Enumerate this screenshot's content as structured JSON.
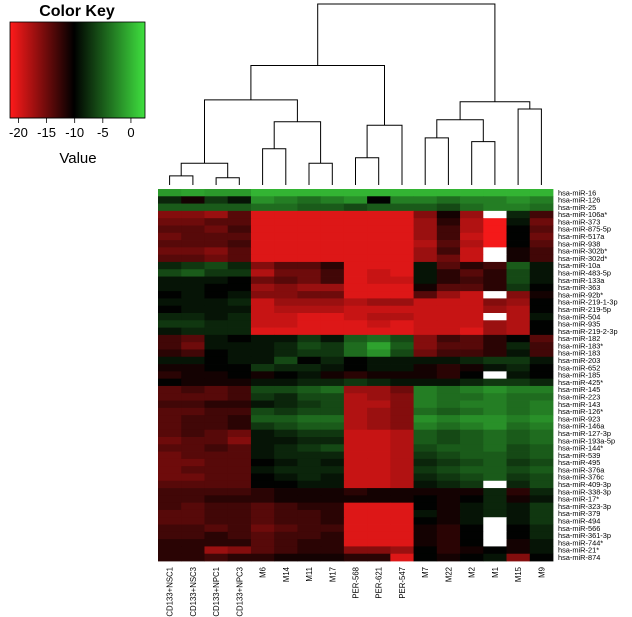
{
  "color_key": {
    "title": "Color Key",
    "axis_label": "Value",
    "ticks": [
      "-20",
      "-15",
      "-10",
      "-5",
      "0"
    ],
    "range": [
      -21.5,
      2.5
    ],
    "colors": {
      "low": "#ff1a1a",
      "mid": "#000000",
      "high": "#3fe03f"
    }
  },
  "chart_data": {
    "type": "heatmap",
    "columns": [
      "CD133+NSC1",
      "CD133+NSC3",
      "CD133+NPC1",
      "CD133+NPC3",
      "M6",
      "M14",
      "M11",
      "M17",
      "PER-568",
      "PER-621",
      "PER-547",
      "M7",
      "M22",
      "M2",
      "M1",
      "M15",
      "M9"
    ],
    "rows": [
      "hsa-miR-16",
      "hsa-miR-126",
      "hsa-miR-25",
      "hsa-miR-106a*",
      "hsa-miR-373",
      "hsa-miR-875-5p",
      "hsa-miR-517a",
      "hsa-miR-938",
      "hsa-miR-302b*",
      "hsa-miR-302d*",
      "hsa-miR-10a",
      "hsa-miR-483-5p",
      "hsa-miR-133a",
      "hsa-miR-363",
      "hsa-miR-92b*",
      "hsa-miR-219-1-3p",
      "hsa-miR-219-5p",
      "hsa-miR-504",
      "hsa-miR-935",
      "hsa-miR-219-2-3p",
      "hsa-miR-182",
      "hsa-miR-183*",
      "hsa-miR-183",
      "hsa-miR-203",
      "hsa-miR-652",
      "hsa-miR-185",
      "hsa-miR-425*",
      "hsa-miR-145",
      "hsa-miR-223",
      "hsa-miR-143",
      "hsa-miR-126*",
      "hsa-miR-923",
      "hsa-miR-146a",
      "hsa-miR-127-3p",
      "hsa-miR-193a-5p",
      "hsa-miR-144*",
      "hsa-miR-539",
      "hsa-miR-495",
      "hsa-miR-376a",
      "hsa-miR-376c",
      "hsa-miR-409-3p",
      "hsa-miR-338-3p",
      "hsa-miR-17*",
      "hsa-miR-323-3p",
      "hsa-miR-379",
      "hsa-miR-494",
      "hsa-miR-566",
      "hsa-miR-361-3p",
      "hsa-miR-744*",
      "hsa-miR-21*",
      "hsa-miR-874"
    ],
    "values": [
      [
        -1.5,
        -1,
        -1.5,
        -1.5,
        0,
        0,
        0,
        0,
        0,
        0,
        0,
        0,
        0,
        0,
        0,
        0,
        0
      ],
      [
        -8,
        -11,
        -7,
        -9,
        -2,
        -3,
        -4,
        -3,
        -2,
        -10,
        -3,
        -3,
        -4,
        -3,
        -3,
        -2,
        -3
      ],
      [
        -5,
        -5,
        -5,
        -5,
        -4,
        -4,
        -5,
        -5,
        -6,
        -5,
        -5,
        -5,
        -6,
        -4,
        -3,
        -3,
        -4
      ],
      [
        -16,
        -16,
        -17,
        -14,
        -20,
        -20,
        -20,
        -20,
        -20,
        -20,
        -20,
        -16,
        -11,
        -17,
        null,
        -8,
        -13
      ],
      [
        -15,
        -15,
        -14,
        -14,
        -20,
        -20,
        -20,
        -20,
        -20,
        -20,
        -20,
        -17,
        -12,
        -18,
        -21,
        -9,
        -15
      ],
      [
        -14,
        -14,
        -15,
        -13,
        -20,
        -20,
        -20,
        -20,
        -20,
        -20,
        -20,
        -17,
        -13,
        -18,
        -21,
        -10,
        -14
      ],
      [
        -15,
        -14,
        -14,
        -14,
        -20,
        -20,
        -20,
        -20,
        -20,
        -20,
        -20,
        -17,
        -13,
        -19,
        -21,
        -10,
        -15
      ],
      [
        -14,
        -14,
        -14,
        -13,
        -20,
        -20,
        -20,
        -20,
        -20,
        -20,
        -20,
        -18,
        -14,
        -18,
        -21,
        -10,
        -14
      ],
      [
        -15,
        -15,
        -16,
        -14,
        -20,
        -20,
        -20,
        -20,
        -20,
        -20,
        -20,
        -17,
        -13,
        -19,
        null,
        -11,
        -13
      ],
      [
        -14,
        -14,
        -15,
        -14,
        -20,
        -20,
        -20,
        -20,
        -20,
        -20,
        -20,
        -17,
        -15,
        -19,
        null,
        -11,
        -13
      ],
      [
        -8,
        -7,
        -6,
        -8,
        -16,
        -14,
        -14,
        -12,
        -20,
        -20,
        -20,
        -9,
        -14,
        -12,
        -13,
        -5,
        -9
      ],
      [
        -6,
        -5,
        -7,
        -7,
        -18,
        -15,
        -15,
        -13,
        -20,
        -19,
        -20,
        -9,
        -12,
        -14,
        -12,
        -6,
        -9
      ],
      [
        -9,
        -9,
        -9,
        -10,
        -15,
        -14,
        -15,
        -13,
        -20,
        -19,
        -19,
        -9,
        -12,
        -13,
        -12,
        -6,
        -9
      ],
      [
        -9,
        -9,
        -10,
        -10,
        -17,
        -16,
        -17,
        -17,
        -20,
        -20,
        -20,
        -11,
        -14,
        -14,
        -12,
        -7,
        -10
      ],
      [
        -10,
        -9,
        -10,
        -9,
        -16,
        -16,
        -15,
        -15,
        -20,
        -20,
        -20,
        -14,
        -17,
        -19,
        null,
        -16,
        -11
      ],
      [
        -9,
        -9,
        -9,
        -8,
        -19,
        -17,
        -17,
        -17,
        -18,
        -17,
        -17,
        -19,
        -19,
        -19,
        -16,
        -17,
        -10
      ],
      [
        -10,
        -9,
        -9,
        -9,
        -19,
        -18,
        -18,
        -18,
        -19,
        -19,
        -19,
        -19,
        -19,
        -19,
        -17,
        -18,
        -10
      ],
      [
        -8,
        -8,
        -9,
        -8,
        -19,
        -19,
        -20,
        -20,
        -19,
        -18,
        -18,
        -19,
        -19,
        -19,
        null,
        -18,
        -9
      ],
      [
        -7,
        -7,
        -8,
        -8,
        -19,
        -19,
        -20,
        -20,
        -20,
        -19,
        -20,
        -19,
        -19,
        -19,
        -17,
        -18,
        -10
      ],
      [
        -9,
        -8,
        -8,
        -8,
        -20,
        -20,
        -20,
        -20,
        -20,
        -20,
        -20,
        -19,
        -19,
        -20,
        -17,
        -18,
        -10
      ],
      [
        -13,
        -14,
        -9,
        -10,
        -9,
        -9,
        -7,
        -9,
        -5,
        -4,
        -6,
        -16,
        -13,
        -14,
        -12,
        -10,
        -14
      ],
      [
        -13,
        -15,
        -9,
        -9,
        -9,
        -8,
        -6,
        -7,
        -4,
        -1,
        -5,
        -16,
        -14,
        -14,
        -12,
        -8,
        -13
      ],
      [
        -12,
        -13,
        -10,
        -9,
        -9,
        -8,
        -7,
        -7,
        -4,
        -2,
        -6,
        -15,
        -13,
        -13,
        -12,
        -9,
        -13
      ],
      [
        -9,
        -9,
        -10,
        -9,
        -9,
        -6,
        -10,
        -8,
        -10,
        -9,
        -9,
        -9,
        -9,
        -8,
        -7,
        -7,
        -9
      ],
      [
        -11,
        -11,
        -10,
        -10,
        -7,
        -8,
        -8,
        -9,
        -10,
        -9,
        -9,
        -11,
        -12,
        -11,
        -9,
        -8,
        -10
      ],
      [
        -12,
        -11,
        -11,
        -10,
        -11,
        -10,
        -9,
        -11,
        -12,
        -11,
        -11,
        -11,
        -12,
        -10,
        null,
        -9,
        -10
      ],
      [
        -10,
        -11,
        -11,
        -11,
        -9,
        -9,
        -8,
        -8,
        -7,
        -8,
        -9,
        -9,
        -9,
        -8,
        -7,
        -7,
        -8
      ],
      [
        -14,
        -13,
        -14,
        -13,
        -6,
        -6,
        -5,
        -4,
        -17,
        -17,
        -15,
        -3,
        -4,
        -3,
        -2,
        -3,
        -3
      ],
      [
        -14,
        -14,
        -14,
        -13,
        -7,
        -8,
        -6,
        -6,
        -18,
        -17,
        -16,
        -3,
        -4,
        -4,
        -3,
        -4,
        -4
      ],
      [
        -13,
        -13,
        -12,
        -12,
        -9,
        -8,
        -7,
        -6,
        -18,
        -18,
        -16,
        -3,
        -4,
        -3,
        -3,
        -4,
        -3
      ],
      [
        -14,
        -14,
        -13,
        -13,
        -6,
        -7,
        -6,
        -6,
        -18,
        -17,
        -16,
        -4,
        -5,
        -4,
        -3,
        -4,
        -3
      ],
      [
        -14,
        -13,
        -13,
        -12,
        -5,
        -5,
        -4,
        -4,
        -18,
        -17,
        -16,
        -2,
        -3,
        -2,
        -2,
        -3,
        -2
      ],
      [
        -14,
        -13,
        -13,
        -12,
        -7,
        -6,
        -5,
        -5,
        -18,
        -17,
        -16,
        -3,
        -4,
        -3,
        -2,
        -4,
        -3
      ],
      [
        -14,
        -13,
        -14,
        -15,
        -9,
        -8,
        -7,
        -7,
        -19,
        -19,
        -18,
        -5,
        -6,
        -5,
        -4,
        -5,
        -4
      ],
      [
        -15,
        -14,
        -14,
        -16,
        -9,
        -9,
        -8,
        -8,
        -19,
        -19,
        -18,
        -5,
        -6,
        -5,
        -4,
        -5,
        -4
      ],
      [
        -14,
        -14,
        -13,
        -14,
        -9,
        -8,
        -7,
        -6,
        -19,
        -19,
        -18,
        -6,
        -5,
        -5,
        -4,
        -6,
        -5
      ],
      [
        -15,
        -14,
        -14,
        -14,
        -9,
        -8,
        -8,
        -8,
        -19,
        -19,
        -18,
        -7,
        -6,
        -5,
        -5,
        -6,
        -5
      ],
      [
        -15,
        -15,
        -14,
        -14,
        -10,
        -9,
        -8,
        -9,
        -19,
        -19,
        -18,
        -8,
        -7,
        -6,
        -5,
        -7,
        -6
      ],
      [
        -15,
        -14,
        -14,
        -14,
        -9,
        -8,
        -8,
        -8,
        -19,
        -19,
        -18,
        -7,
        -6,
        -5,
        -5,
        -6,
        -5
      ],
      [
        -15,
        -15,
        -14,
        -14,
        -10,
        -9,
        -8,
        -9,
        -19,
        -19,
        -18,
        -8,
        -7,
        -6,
        -5,
        -7,
        -6
      ],
      [
        -14,
        -14,
        -14,
        -14,
        -10,
        -10,
        -9,
        -9,
        -19,
        -19,
        -18,
        -9,
        -8,
        -7,
        null,
        -8,
        -6
      ],
      [
        -13,
        -13,
        -13,
        -13,
        -12,
        -11,
        -11,
        -11,
        -12,
        -11,
        -11,
        -11,
        -11,
        -11,
        -8,
        -12,
        -8
      ],
      [
        -13,
        -13,
        -12,
        -12,
        -12,
        -11,
        -11,
        -11,
        -11,
        -11,
        -11,
        -10,
        -11,
        -10,
        -8,
        -11,
        -9
      ],
      [
        -13,
        -14,
        -13,
        -13,
        -14,
        -13,
        -12,
        -12,
        -20,
        -20,
        -20,
        -10,
        -11,
        -9,
        -8,
        -9,
        -7
      ],
      [
        -14,
        -14,
        -13,
        -13,
        -14,
        -13,
        -13,
        -12,
        -20,
        -20,
        -20,
        -9,
        -11,
        -9,
        -8,
        -9,
        -7
      ],
      [
        -14,
        -14,
        -13,
        -13,
        -14,
        -13,
        -13,
        -12,
        -20,
        -20,
        -20,
        -10,
        -11,
        -9,
        null,
        -9,
        -7
      ],
      [
        -13,
        -13,
        -14,
        -13,
        -15,
        -14,
        -13,
        -13,
        -20,
        -20,
        -20,
        -11,
        -12,
        -10,
        null,
        -10,
        -8
      ],
      [
        -13,
        -13,
        -12,
        -13,
        -14,
        -13,
        -13,
        -12,
        -20,
        -20,
        -20,
        -11,
        -12,
        -10,
        null,
        -10,
        -8
      ],
      [
        -12,
        -12,
        -12,
        -12,
        -14,
        -13,
        -12,
        -12,
        -20,
        -20,
        -20,
        -11,
        -12,
        -10,
        null,
        -11,
        -9
      ],
      [
        -12,
        -12,
        -17,
        -16,
        -14,
        -13,
        -12,
        -12,
        -16,
        -16,
        -17,
        -10,
        -12,
        -11,
        -10,
        -11,
        -9
      ],
      [
        -12,
        -12,
        -13,
        -12,
        -12,
        -11,
        -11,
        -11,
        -12,
        -12,
        -20,
        -10,
        -11,
        -10,
        -9,
        -16,
        -10
      ]
    ]
  }
}
